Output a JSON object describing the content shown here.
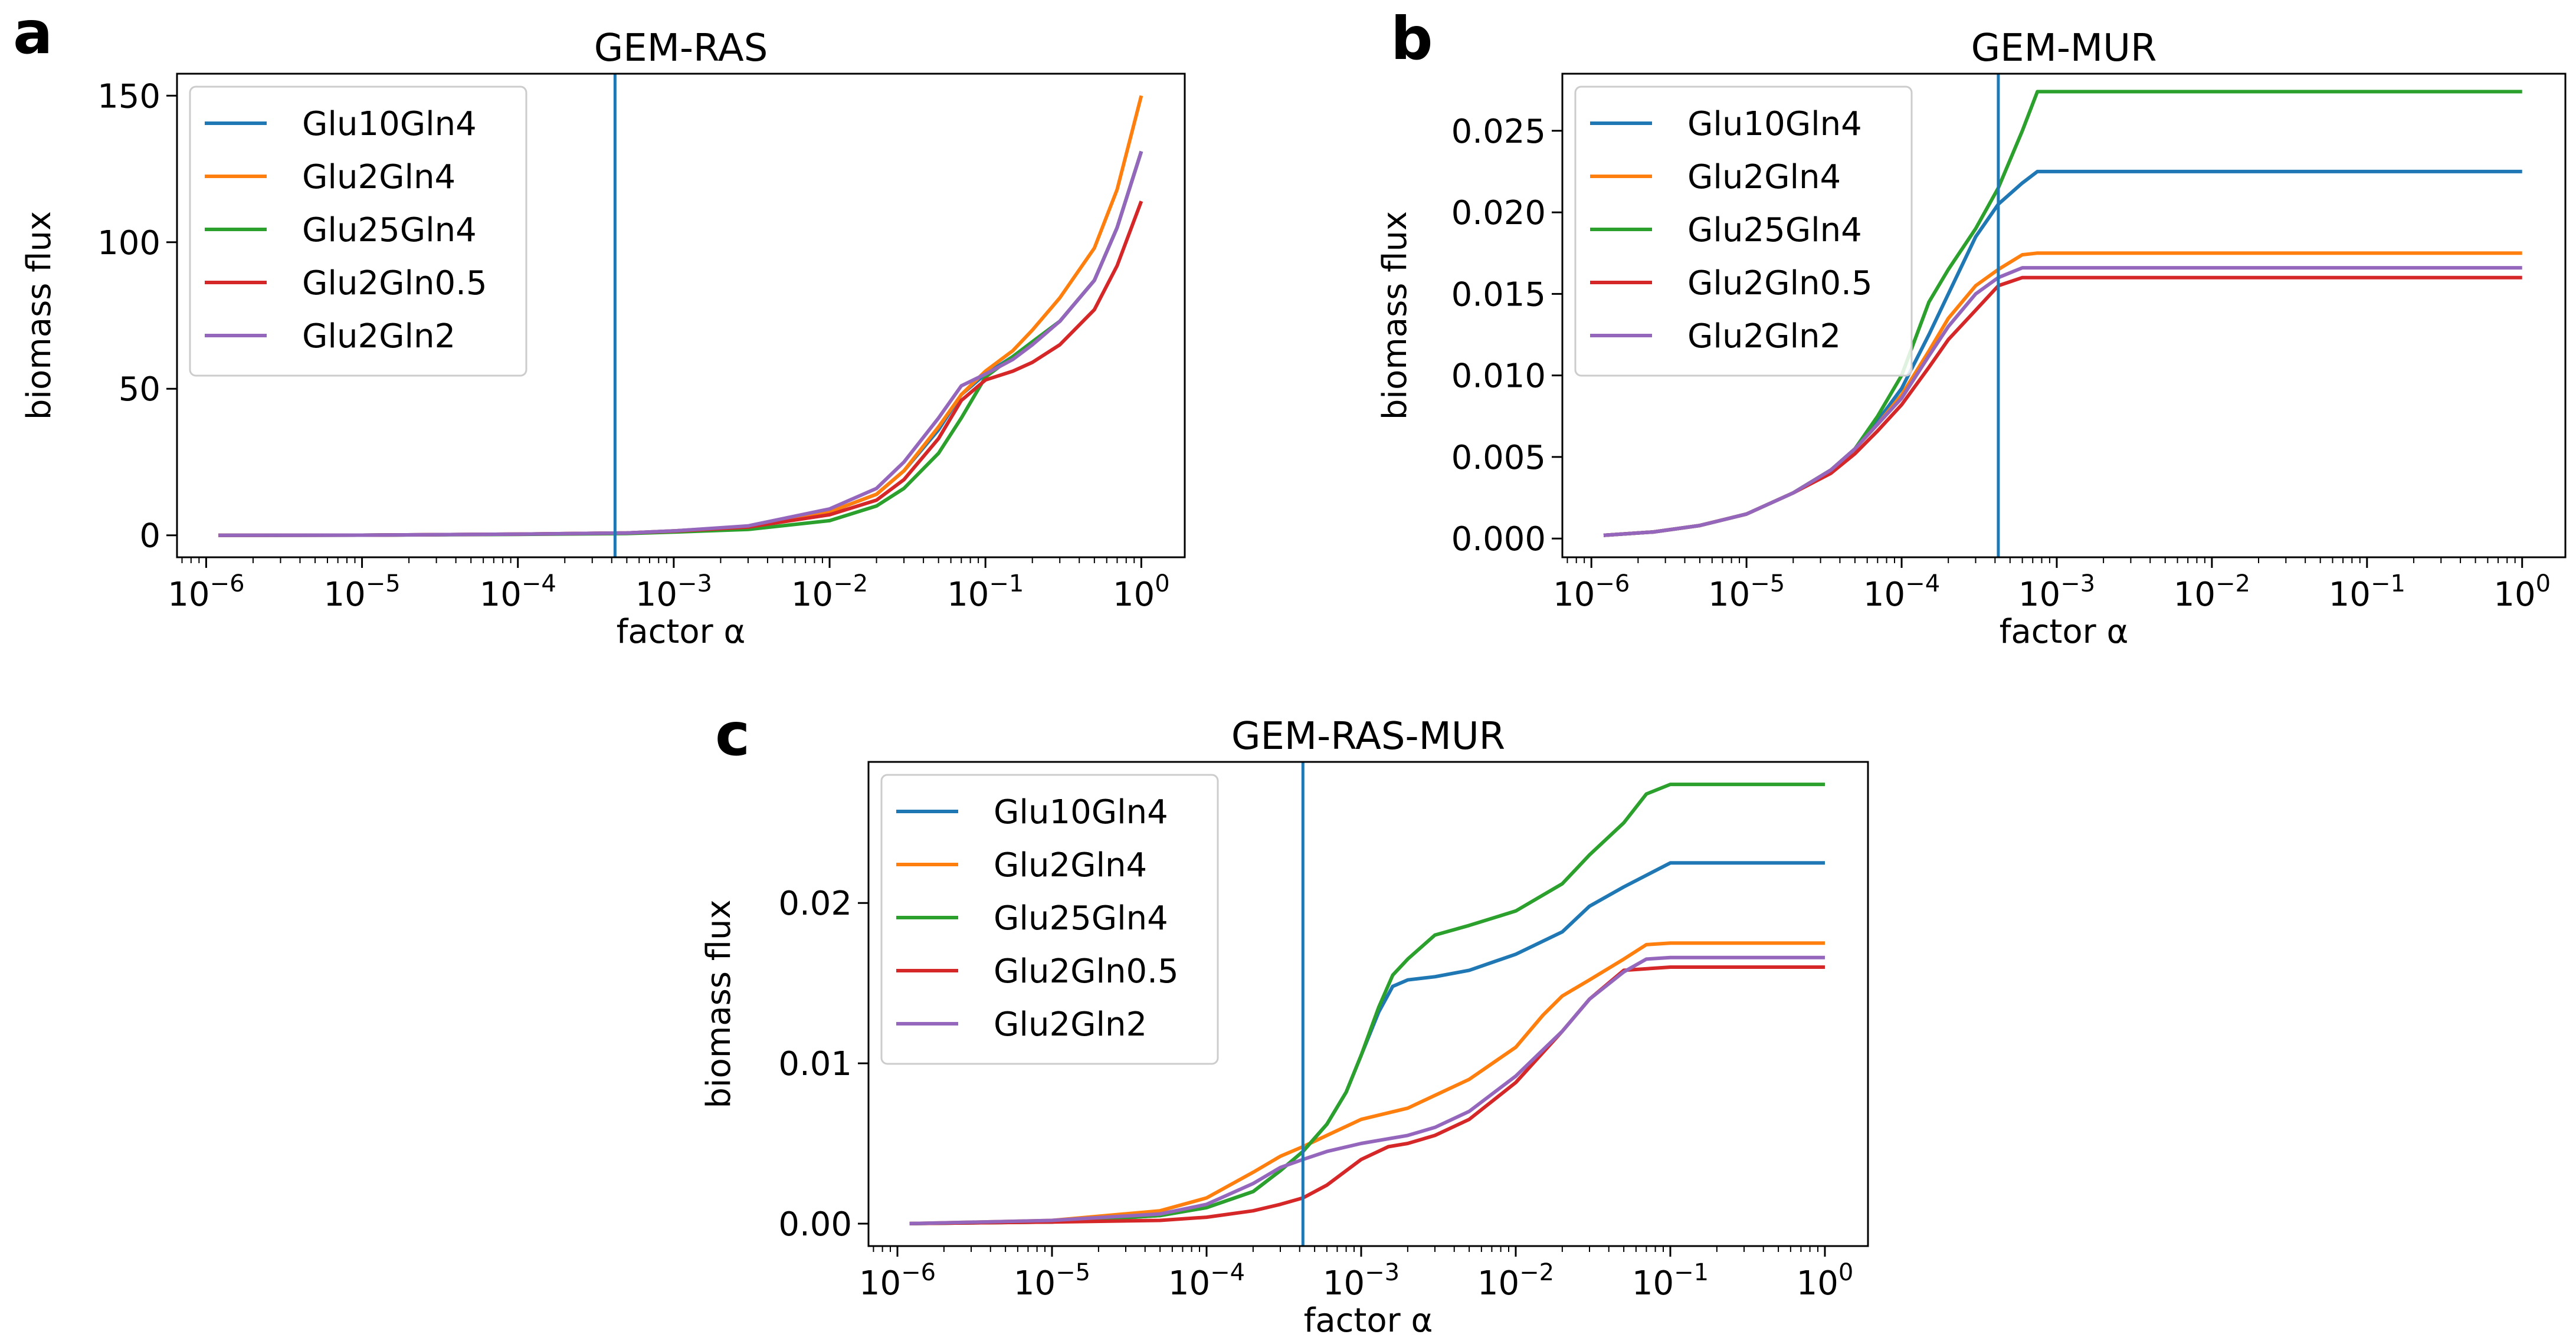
{
  "figure": {
    "panels": [
      {
        "letter": "a"
      },
      {
        "letter": "b"
      },
      {
        "letter": "c"
      }
    ]
  },
  "chart_data": [
    {
      "type": "line",
      "title": "GEM-RAS",
      "xlabel": "factor α",
      "ylabel": "biomass flux",
      "xscale": "log",
      "xlim": [
        6.5e-07,
        1.9
      ],
      "ylim": [
        -7.5,
        157.5
      ],
      "xticks": [
        1e-06,
        1e-05,
        0.0001,
        0.001,
        0.01,
        0.1,
        1
      ],
      "xtick_exponents": [
        "−6",
        "−5",
        "−4",
        "−3",
        "−2",
        "−1",
        "0"
      ],
      "yticks": [
        0,
        50,
        100,
        150
      ],
      "ytick_labels": [
        "0",
        "50",
        "100",
        "150"
      ],
      "vline": 0.00042,
      "legend_position": "upper-left",
      "series": [
        {
          "name": "Glu10Gln4",
          "color": "#1f77b4",
          "x": [
            1.2e-06,
            1e-05,
            0.0001,
            0.0005,
            0.001,
            0.003,
            0.01,
            0.02,
            0.03,
            0.05,
            0.07,
            0.1,
            0.15,
            0.2,
            0.3,
            0.5,
            0.7,
            1.0
          ],
          "y": [
            0,
            0.05,
            0.4,
            0.8,
            1.5,
            3,
            8,
            14,
            22,
            36,
            48,
            55,
            61,
            66,
            73,
            87,
            105,
            131
          ]
        },
        {
          "name": "Glu2Gln4",
          "color": "#ff7f0e",
          "x": [
            1.2e-06,
            1e-05,
            0.0001,
            0.0005,
            0.001,
            0.003,
            0.01,
            0.02,
            0.03,
            0.05,
            0.07,
            0.1,
            0.15,
            0.2,
            0.3,
            0.5,
            0.7,
            1.0
          ],
          "y": [
            0,
            0.05,
            0.4,
            0.8,
            1.5,
            3,
            8,
            14,
            22,
            37,
            48,
            56,
            63,
            70,
            81,
            98,
            118,
            150
          ]
        },
        {
          "name": "Glu25Gln4",
          "color": "#2ca02c",
          "x": [
            1.2e-06,
            1e-05,
            0.0001,
            0.0005,
            0.001,
            0.003,
            0.01,
            0.02,
            0.03,
            0.05,
            0.07,
            0.1,
            0.15,
            0.2,
            0.3,
            0.5,
            0.7,
            1.0
          ],
          "y": [
            0,
            0.05,
            0.3,
            0.6,
            1.1,
            2,
            5,
            10,
            16,
            28,
            40,
            54,
            61,
            66,
            73,
            87,
            105,
            131
          ]
        },
        {
          "name": "Glu2Gln0.5",
          "color": "#d62728",
          "x": [
            1.2e-06,
            1e-05,
            0.0001,
            0.0005,
            0.001,
            0.003,
            0.01,
            0.02,
            0.03,
            0.05,
            0.07,
            0.1,
            0.15,
            0.2,
            0.3,
            0.5,
            0.7,
            1.0
          ],
          "y": [
            0,
            0.05,
            0.4,
            0.8,
            1.4,
            2.8,
            7,
            12,
            19,
            33,
            46,
            53,
            56,
            59,
            65,
            77,
            92,
            114
          ]
        },
        {
          "name": "Glu2Gln2",
          "color": "#9467bd",
          "x": [
            1.2e-06,
            1e-05,
            0.0001,
            0.0005,
            0.001,
            0.003,
            0.01,
            0.02,
            0.03,
            0.05,
            0.07,
            0.1,
            0.15,
            0.2,
            0.3,
            0.5,
            0.7,
            1.0
          ],
          "y": [
            0,
            0.05,
            0.4,
            0.8,
            1.5,
            3.2,
            9,
            16,
            25,
            40,
            51,
            55,
            60,
            65,
            73,
            87,
            105,
            131
          ]
        }
      ]
    },
    {
      "type": "line",
      "title": "GEM-MUR",
      "xlabel": "factor α",
      "ylabel": "biomass flux",
      "xscale": "log",
      "xlim": [
        6.5e-07,
        1.9
      ],
      "ylim": [
        -0.00115,
        0.0285
      ],
      "xticks": [
        1e-06,
        1e-05,
        0.0001,
        0.001,
        0.01,
        0.1,
        1
      ],
      "xtick_exponents": [
        "−6",
        "−5",
        "−4",
        "−3",
        "−2",
        "−1",
        "0"
      ],
      "yticks": [
        0,
        0.005,
        0.01,
        0.015,
        0.02,
        0.025
      ],
      "ytick_labels": [
        "0.000",
        "0.005",
        "0.010",
        "0.015",
        "0.020",
        "0.025"
      ],
      "vline": 0.00042,
      "legend_position": "upper-left",
      "series": [
        {
          "name": "Glu10Gln4",
          "color": "#1f77b4",
          "x": [
            1.2e-06,
            2.5e-06,
            5e-06,
            1e-05,
            2e-05,
            3.5e-05,
            5e-05,
            7e-05,
            0.0001,
            0.00015,
            0.0002,
            0.0003,
            0.00042,
            0.0006,
            0.00075,
            1.0
          ],
          "y": [
            0.0002,
            0.0004,
            0.0008,
            0.0015,
            0.0028,
            0.0042,
            0.0055,
            0.0072,
            0.0092,
            0.0125,
            0.015,
            0.0185,
            0.0205,
            0.0218,
            0.0225,
            0.0225
          ]
        },
        {
          "name": "Glu2Gln4",
          "color": "#ff7f0e",
          "x": [
            1.2e-06,
            2.5e-06,
            5e-06,
            1e-05,
            2e-05,
            3.5e-05,
            5e-05,
            7e-05,
            0.0001,
            0.00015,
            0.0002,
            0.0003,
            0.00042,
            0.0006,
            0.00075,
            1.0
          ],
          "y": [
            0.0002,
            0.0004,
            0.0008,
            0.0015,
            0.0028,
            0.0042,
            0.0055,
            0.007,
            0.0088,
            0.0115,
            0.0135,
            0.0155,
            0.0165,
            0.0174,
            0.0175,
            0.0175
          ]
        },
        {
          "name": "Glu25Gln4",
          "color": "#2ca02c",
          "x": [
            1.2e-06,
            2.5e-06,
            5e-06,
            1e-05,
            2e-05,
            3.5e-05,
            5e-05,
            7e-05,
            0.0001,
            0.00015,
            0.0002,
            0.0003,
            0.00042,
            0.0006,
            0.00075,
            1.0
          ],
          "y": [
            0.0002,
            0.0004,
            0.0008,
            0.0015,
            0.0028,
            0.0042,
            0.0055,
            0.0075,
            0.01,
            0.0145,
            0.0165,
            0.019,
            0.0215,
            0.025,
            0.0274,
            0.0274
          ]
        },
        {
          "name": "Glu2Gln0.5",
          "color": "#d62728",
          "x": [
            1.2e-06,
            2.5e-06,
            5e-06,
            1e-05,
            2e-05,
            3.5e-05,
            5e-05,
            7e-05,
            0.0001,
            0.00015,
            0.0002,
            0.0003,
            0.00042,
            0.0006,
            0.00075,
            1.0
          ],
          "y": [
            0.0002,
            0.0004,
            0.0008,
            0.0015,
            0.0028,
            0.004,
            0.0052,
            0.0066,
            0.0082,
            0.0105,
            0.0122,
            0.014,
            0.0155,
            0.016,
            0.016,
            0.016
          ]
        },
        {
          "name": "Glu2Gln2",
          "color": "#9467bd",
          "x": [
            1.2e-06,
            2.5e-06,
            5e-06,
            1e-05,
            2e-05,
            3.5e-05,
            5e-05,
            7e-05,
            0.0001,
            0.00015,
            0.0002,
            0.0003,
            0.00042,
            0.0006,
            0.00075,
            1.0
          ],
          "y": [
            0.0002,
            0.0004,
            0.0008,
            0.0015,
            0.0028,
            0.0042,
            0.0055,
            0.007,
            0.0086,
            0.0112,
            0.013,
            0.015,
            0.016,
            0.0166,
            0.0166,
            0.0166
          ]
        }
      ]
    },
    {
      "type": "line",
      "title": "GEM-RAS-MUR",
      "xlabel": "factor α",
      "ylabel": "biomass flux",
      "xscale": "log",
      "xlim": [
        6.5e-07,
        1.9
      ],
      "ylim": [
        -0.0014,
        0.0288
      ],
      "xticks": [
        1e-06,
        1e-05,
        0.0001,
        0.001,
        0.01,
        0.1,
        1
      ],
      "xtick_exponents": [
        "−6",
        "−5",
        "−4",
        "−3",
        "−2",
        "−1",
        "0"
      ],
      "yticks": [
        0,
        0.01,
        0.02
      ],
      "ytick_labels": [
        "0.00",
        "0.01",
        "0.02"
      ],
      "vline": 0.00042,
      "legend_position": "upper-left",
      "series": [
        {
          "name": "Glu10Gln4",
          "color": "#1f77b4",
          "x": [
            1.2e-06,
            1e-05,
            5e-05,
            0.0001,
            0.0002,
            0.0003,
            0.00042,
            0.0006,
            0.0008,
            0.001,
            0.0013,
            0.0016,
            0.002,
            0.003,
            0.005,
            0.01,
            0.02,
            0.03,
            0.05,
            0.1,
            1.0
          ],
          "y": [
            0,
            0.0001,
            0.0005,
            0.001,
            0.002,
            0.0033,
            0.0045,
            0.0062,
            0.0082,
            0.0105,
            0.0132,
            0.0148,
            0.0152,
            0.0154,
            0.0158,
            0.0168,
            0.0182,
            0.0198,
            0.021,
            0.0225,
            0.0225
          ]
        },
        {
          "name": "Glu2Gln4",
          "color": "#ff7f0e",
          "x": [
            1.2e-06,
            1e-05,
            5e-05,
            0.0001,
            0.0002,
            0.0003,
            0.00042,
            0.0006,
            0.001,
            0.002,
            0.003,
            0.005,
            0.01,
            0.015,
            0.02,
            0.03,
            0.05,
            0.07,
            0.1,
            1.0
          ],
          "y": [
            0,
            0.0002,
            0.0008,
            0.0016,
            0.0032,
            0.0042,
            0.0048,
            0.0055,
            0.0065,
            0.0072,
            0.008,
            0.009,
            0.011,
            0.013,
            0.0142,
            0.0152,
            0.0165,
            0.0174,
            0.0175,
            0.0175
          ]
        },
        {
          "name": "Glu25Gln4",
          "color": "#2ca02c",
          "x": [
            1.2e-06,
            1e-05,
            5e-05,
            0.0001,
            0.0002,
            0.0003,
            0.00042,
            0.0006,
            0.0008,
            0.001,
            0.0013,
            0.0016,
            0.002,
            0.003,
            0.005,
            0.01,
            0.02,
            0.03,
            0.05,
            0.07,
            0.1,
            1.0
          ],
          "y": [
            0,
            0.0001,
            0.0005,
            0.001,
            0.002,
            0.0033,
            0.0045,
            0.0062,
            0.0082,
            0.0105,
            0.0135,
            0.0155,
            0.0165,
            0.018,
            0.0186,
            0.0195,
            0.0212,
            0.023,
            0.025,
            0.0268,
            0.0274,
            0.0274
          ]
        },
        {
          "name": "Glu2Gln0.5",
          "color": "#d62728",
          "x": [
            1.2e-06,
            1e-05,
            5e-05,
            0.0001,
            0.0002,
            0.0003,
            0.00042,
            0.0006,
            0.001,
            0.0015,
            0.002,
            0.003,
            0.005,
            0.01,
            0.02,
            0.03,
            0.05,
            0.1,
            1.0
          ],
          "y": [
            0,
            0.0001,
            0.0002,
            0.0004,
            0.0008,
            0.0012,
            0.0016,
            0.0024,
            0.004,
            0.0048,
            0.005,
            0.0055,
            0.0065,
            0.0088,
            0.012,
            0.014,
            0.0158,
            0.016,
            0.016
          ]
        },
        {
          "name": "Glu2Gln2",
          "color": "#9467bd",
          "x": [
            1.2e-06,
            1e-05,
            5e-05,
            0.0001,
            0.0002,
            0.0003,
            0.00042,
            0.0006,
            0.001,
            0.002,
            0.003,
            0.005,
            0.01,
            0.02,
            0.03,
            0.05,
            0.07,
            0.1,
            1.0
          ],
          "y": [
            0,
            0.0002,
            0.0006,
            0.0012,
            0.0025,
            0.0035,
            0.004,
            0.0045,
            0.005,
            0.0055,
            0.006,
            0.007,
            0.0092,
            0.012,
            0.014,
            0.0157,
            0.0165,
            0.0166,
            0.0166
          ]
        }
      ]
    }
  ]
}
